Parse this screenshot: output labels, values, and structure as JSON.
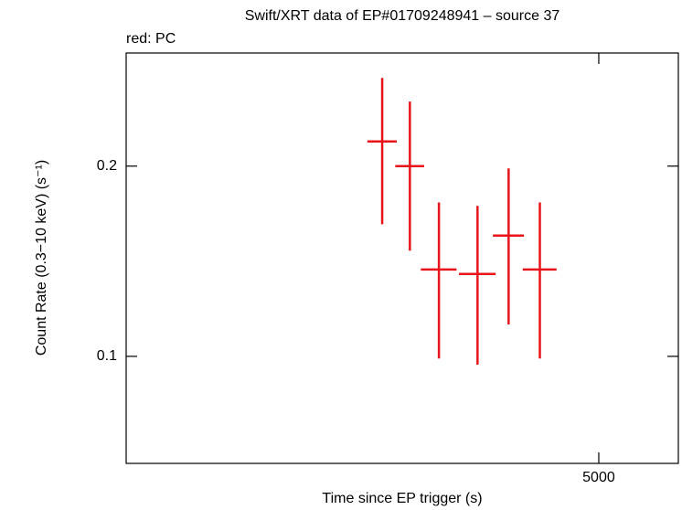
{
  "chart_data": {
    "type": "errorbar",
    "title": "Swift/XRT data of EP#01709248941 – source 37",
    "subtitle": "red: PC",
    "x_label": "Time since EP trigger (s)",
    "y_label": "Count Rate (0.3−10 keV) (s⁻¹)",
    "x_scale": "log",
    "y_scale": "log",
    "xlim": [
      2513,
      5614
    ],
    "ylim": [
      0.0677,
      0.302
    ],
    "xticks": [
      5000
    ],
    "yticks": [
      0.1,
      0.2
    ],
    "series": [
      {
        "name": "PC",
        "color": "#e8141a",
        "x": [
          3648,
          3798,
          3962,
          4191,
          4385,
          4589
        ],
        "xerr": [
          78,
          80,
          103,
          112,
          99,
          113
        ],
        "values": [
          0.2188,
          0.2,
          0.1372,
          0.135,
          0.1553,
          0.1372
        ],
        "yerr": [
          0.057,
          0.053,
          0.038,
          0.038,
          0.043,
          0.038
        ]
      }
    ]
  }
}
